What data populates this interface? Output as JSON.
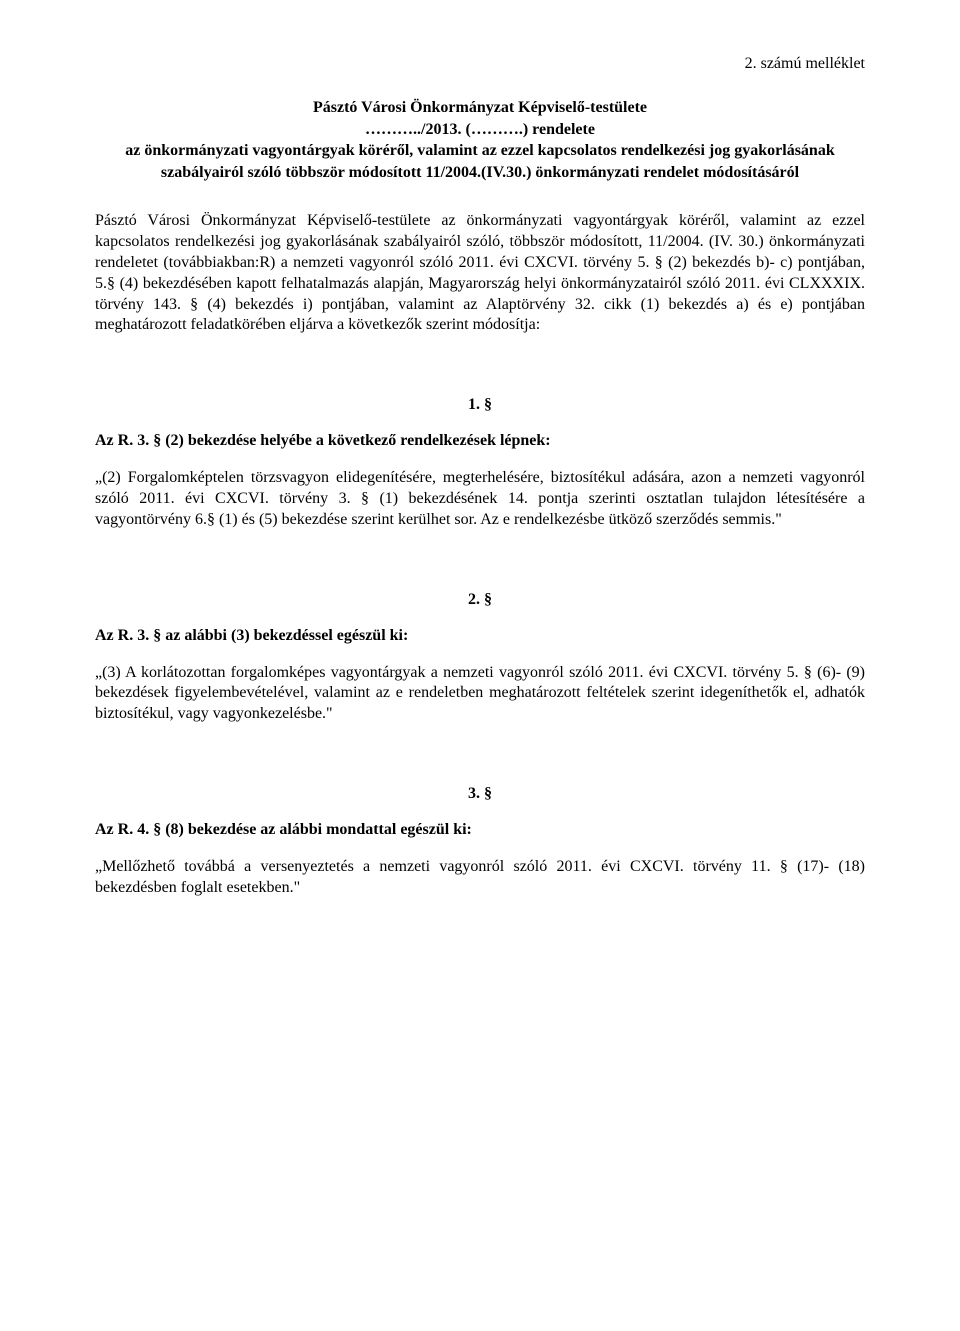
{
  "annex_label": "2. számú melléklet",
  "title": {
    "line1": "Pásztó Városi Önkormányzat Képviselő-testülete",
    "line2": "………../2013. (……….) rendelete",
    "line3": "az önkormányzati vagyontárgyak köréről, valamint az ezzel kapcsolatos rendelkezési jog gyakorlásának szabályairól szóló többször módosított 11/2004.(IV.30.) önkormányzati rendelet módosításáról"
  },
  "preamble": "Pásztó Városi Önkormányzat Képviselő-testülete az önkormányzati vagyontárgyak köréről, valamint az ezzel kapcsolatos rendelkezési jog gyakorlásának szabályairól szóló, többször módosított, 11/2004. (IV. 30.) önkormányzati rendeletet (továbbiakban:R) a nemzeti vagyonról szóló 2011. évi CXCVI. törvény 5. § (2) bekezdés b)- c) pontjában, 5.§ (4) bekezdésében kapott felhatalmazás alapján, Magyarország helyi önkormányzatairól szóló 2011. évi CLXXXIX. törvény 143. § (4) bekezdés i) pontjában, valamint az Alaptörvény 32. cikk (1) bekezdés a) és e) pontjában meghatározott feladatkörében eljárva a következők szerint módosítja:",
  "sections": [
    {
      "num": "1. §",
      "heading": "Az R. 3. § (2) bekezdése helyébe a következő  rendelkezések lépnek:",
      "body": "„(2) Forgalomképtelen törzsvagyon elidegenítésére, megterhelésére, biztosítékul adására, azon a nemzeti vagyonról szóló 2011. évi CXCVI. törvény 3. § (1) bekezdésének 14. pontja szerinti osztatlan tulajdon létesítésére a vagyontörvény 6.§ (1) és (5) bekezdése szerint kerülhet sor. Az e rendelkezésbe ütköző  szerződés semmis.\""
    },
    {
      "num": "2. §",
      "heading": "Az R. 3. § az alábbi (3) bekezdéssel egészül ki:",
      "body": "„(3) A korlátozottan forgalomképes vagyontárgyak a nemzeti vagyonról szóló 2011. évi CXCVI. törvény 5. § (6)- (9) bekezdések figyelembevételével, valamint az e rendeletben meghatározott feltételek szerint idegeníthetők el, adhatók biztosítékul, vagy vagyonkezelésbe.\""
    },
    {
      "num": "3. §",
      "heading": "Az R. 4. § (8) bekezdése az alábbi mondattal egészül ki:",
      "body": "„Mellőzhető továbbá a versenyeztetés a nemzeti vagyonról szóló 2011. évi CXCVI. törvény 11. § (17)- (18) bekezdésben foglalt esetekben.\""
    }
  ]
}
